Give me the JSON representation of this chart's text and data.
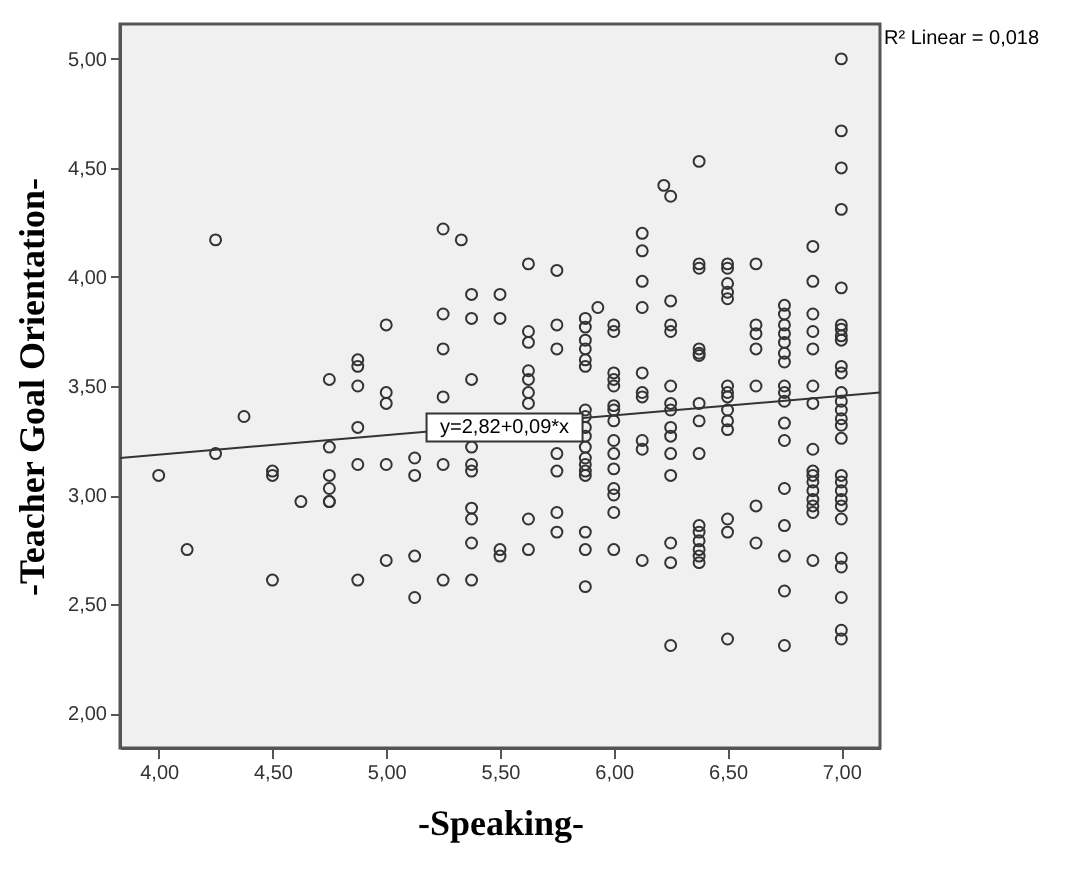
{
  "chart_data": {
    "type": "scatter",
    "xlabel": "-Speaking-",
    "ylabel": "-Teacher Goal Orientation-",
    "marker": "circle",
    "grid": false,
    "xlim": [
      3.83,
      7.17
    ],
    "ylim": [
      1.84,
      5.16
    ],
    "xticks": [
      {
        "value": 4,
        "label": "4,00"
      },
      {
        "value": 4.5,
        "label": "4,50"
      },
      {
        "value": 5,
        "label": "5,00"
      },
      {
        "value": 5.5,
        "label": "5,50"
      },
      {
        "value": 6,
        "label": "6,00"
      },
      {
        "value": 6.5,
        "label": "6,50"
      },
      {
        "value": 7,
        "label": "7,00"
      }
    ],
    "yticks": [
      {
        "value": 2,
        "label": "2,00"
      },
      {
        "value": 2.5,
        "label": "2,50"
      },
      {
        "value": 3,
        "label": "3,00"
      },
      {
        "value": 3.5,
        "label": "3,50"
      },
      {
        "value": 4,
        "label": "4,00"
      },
      {
        "value": 4.5,
        "label": "4,50"
      },
      {
        "value": 5,
        "label": "5,00"
      }
    ],
    "series": [
      {
        "color": "#333333",
        "x": [
          4.0,
          4.125,
          4.25,
          4.25,
          4.375,
          4.5,
          4.5,
          4.5,
          4.625,
          4.75,
          4.75,
          4.75,
          4.75,
          4.75,
          4.75,
          4.875,
          4.875,
          4.875,
          4.875,
          4.875,
          4.875,
          5.0,
          5.0,
          5.0,
          5.0,
          5.0,
          5.125,
          5.125,
          5.125,
          5.125,
          5.25,
          5.25,
          5.25,
          5.25,
          5.25,
          5.25,
          5.33,
          5.375,
          5.375,
          5.375,
          5.375,
          5.375,
          5.375,
          5.375,
          5.375,
          5.375,
          5.375,
          5.5,
          5.5,
          5.5,
          5.5,
          5.625,
          5.625,
          5.625,
          5.625,
          5.625,
          5.625,
          5.625,
          5.625,
          5.625,
          5.75,
          5.75,
          5.75,
          5.75,
          5.75,
          5.75,
          5.75,
          5.875,
          5.875,
          5.875,
          5.875,
          5.875,
          5.875,
          5.875,
          5.875,
          5.875,
          5.875,
          5.875,
          5.875,
          5.875,
          5.875,
          5.875,
          5.875,
          5.875,
          5.875,
          5.93,
          6.0,
          6.0,
          6.0,
          6.0,
          6.0,
          6.0,
          6.0,
          6.0,
          6.0,
          6.0,
          6.0,
          6.0,
          6.0,
          6.0,
          6.0,
          6.125,
          6.125,
          6.125,
          6.125,
          6.125,
          6.125,
          6.125,
          6.125,
          6.125,
          6.125,
          6.22,
          6.25,
          6.25,
          6.25,
          6.25,
          6.25,
          6.25,
          6.25,
          6.25,
          6.25,
          6.25,
          6.25,
          6.25,
          6.25,
          6.25,
          6.375,
          6.375,
          6.375,
          6.375,
          6.375,
          6.375,
          6.375,
          6.375,
          6.375,
          6.375,
          6.375,
          6.375,
          6.375,
          6.375,
          6.375,
          6.5,
          6.5,
          6.5,
          6.5,
          6.5,
          6.5,
          6.5,
          6.5,
          6.5,
          6.5,
          6.5,
          6.5,
          6.5,
          6.5,
          6.625,
          6.625,
          6.625,
          6.625,
          6.625,
          6.625,
          6.625,
          6.75,
          6.75,
          6.75,
          6.75,
          6.75,
          6.75,
          6.75,
          6.75,
          6.75,
          6.75,
          6.75,
          6.75,
          6.75,
          6.75,
          6.75,
          6.75,
          6.75,
          6.875,
          6.875,
          6.875,
          6.875,
          6.875,
          6.875,
          6.875,
          6.875,
          6.875,
          6.875,
          6.875,
          6.875,
          6.875,
          6.875,
          6.875,
          6.875,
          7.0,
          7.0,
          7.0,
          7.0,
          7.0,
          7.0,
          7.0,
          7.0,
          7.0,
          7.0,
          7.0,
          7.0,
          7.0,
          7.0,
          7.0,
          7.0,
          7.0,
          7.0,
          7.0,
          7.0,
          7.0,
          7.0,
          7.0,
          7.0,
          7.0,
          7.0,
          7.0,
          7.0
        ],
        "values": [
          3.09,
          2.75,
          4.17,
          3.19,
          3.36,
          3.11,
          3.09,
          2.61,
          2.97,
          3.53,
          3.22,
          3.09,
          3.03,
          2.97,
          2.97,
          3.62,
          3.59,
          3.5,
          3.31,
          3.14,
          2.61,
          3.78,
          3.47,
          3.42,
          3.14,
          2.7,
          3.17,
          3.09,
          2.72,
          2.53,
          4.22,
          3.83,
          3.67,
          3.45,
          3.14,
          2.61,
          4.17,
          3.92,
          3.81,
          3.53,
          3.22,
          3.14,
          3.11,
          2.94,
          2.89,
          2.78,
          2.61,
          3.92,
          3.81,
          2.75,
          2.72,
          4.06,
          3.75,
          3.7,
          3.57,
          3.53,
          3.47,
          3.42,
          2.89,
          2.75,
          4.03,
          3.78,
          3.67,
          3.19,
          3.11,
          2.92,
          2.83,
          3.81,
          3.77,
          3.71,
          3.67,
          3.62,
          3.59,
          3.39,
          3.36,
          3.31,
          3.27,
          3.22,
          3.17,
          3.11,
          3.14,
          3.09,
          2.83,
          2.75,
          2.58,
          3.86,
          3.78,
          3.75,
          3.56,
          3.53,
          3.5,
          3.41,
          3.39,
          3.34,
          3.25,
          3.19,
          3.12,
          3.03,
          3.0,
          2.92,
          2.75,
          4.2,
          4.12,
          3.98,
          3.86,
          3.56,
          3.47,
          3.45,
          3.25,
          3.21,
          2.7,
          4.42,
          4.37,
          3.89,
          3.78,
          3.75,
          3.5,
          3.42,
          3.39,
          3.31,
          3.27,
          3.19,
          3.09,
          2.78,
          2.69,
          2.31,
          4.53,
          4.06,
          4.04,
          3.67,
          3.65,
          3.64,
          3.42,
          3.34,
          3.19,
          2.86,
          2.83,
          2.79,
          2.75,
          2.72,
          2.69,
          4.06,
          4.04,
          3.97,
          3.93,
          3.9,
          3.5,
          3.47,
          3.45,
          3.39,
          3.34,
          3.3,
          2.89,
          2.83,
          2.34,
          4.06,
          3.78,
          3.74,
          3.67,
          3.5,
          2.95,
          2.78,
          3.87,
          3.83,
          3.78,
          3.74,
          3.7,
          3.65,
          3.61,
          3.5,
          3.47,
          3.43,
          3.33,
          3.25,
          3.03,
          2.86,
          2.72,
          2.56,
          2.31,
          4.14,
          3.98,
          3.83,
          3.75,
          3.67,
          3.5,
          3.42,
          3.21,
          3.11,
          3.09,
          3.06,
          3.02,
          2.98,
          2.95,
          2.92,
          2.7,
          5.0,
          4.67,
          4.5,
          4.31,
          3.95,
          3.78,
          3.76,
          3.73,
          3.71,
          3.59,
          3.56,
          3.47,
          3.43,
          3.39,
          3.35,
          3.32,
          3.26,
          3.09,
          3.06,
          3.02,
          2.98,
          2.95,
          2.89,
          2.71,
          2.67,
          2.53,
          2.38,
          2.34
        ]
      },
      {
        "type": "line",
        "color": "#333333",
        "marker": "none",
        "x": [
          3.83,
          7.17
        ],
        "values": [
          3.17,
          3.47
        ]
      }
    ],
    "annotations": [
      {
        "text": "y=2,82+0,09*x",
        "x": 5.52,
        "y": 3.31
      },
      "R² Linear = 0,018"
    ]
  }
}
